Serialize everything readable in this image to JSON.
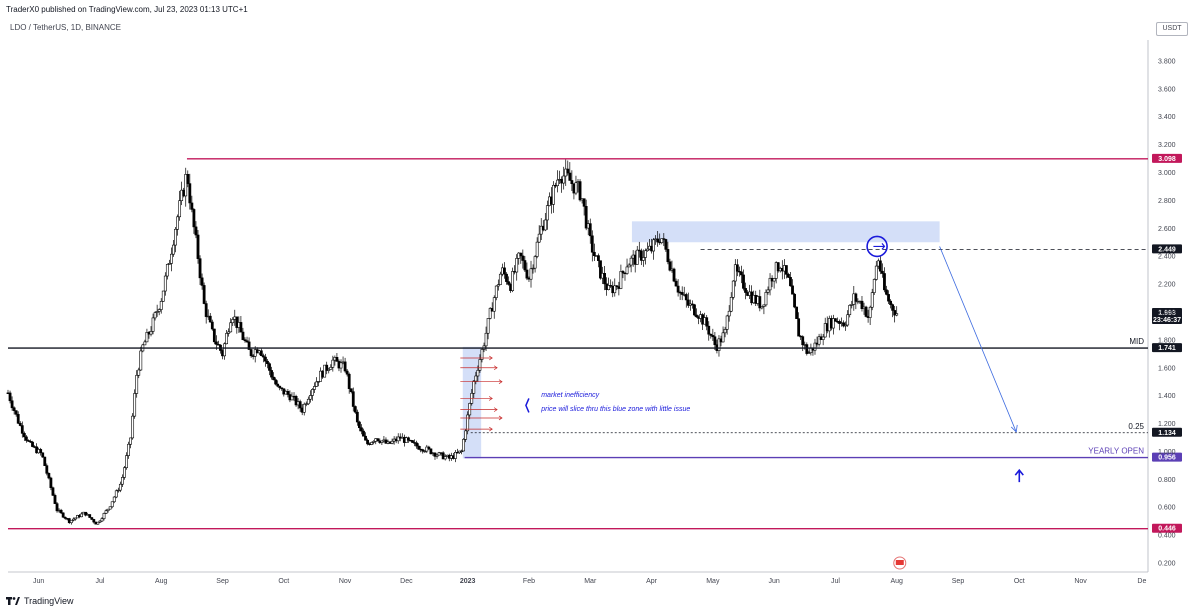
{
  "header": {
    "published": "TraderX0 published on TradingView.com, Jul 23, 2023 01:13 UTC+1",
    "symbol": "LDO / TetherUS, 1D, BINANCE",
    "currency": "USDT"
  },
  "footer": {
    "brand": "TradingView"
  },
  "chart_data": {
    "type": "candlestick",
    "title": "LDO / TetherUS, 1D, BINANCE",
    "y_ticks": [
      "0.200",
      "0.400",
      "0.600",
      "0.800",
      "1.000",
      "1.200",
      "1.400",
      "1.600",
      "1.800",
      "2.000",
      "2.200",
      "2.400",
      "2.600",
      "2.800",
      "3.000",
      "3.200",
      "3.400",
      "3.600",
      "3.800"
    ],
    "ylim": [
      0.15,
      3.95
    ],
    "x_labels": [
      {
        "label": "Jun",
        "x": 0.5
      },
      {
        "label": "Jul",
        "x": 1.5
      },
      {
        "label": "Aug",
        "x": 2.5
      },
      {
        "label": "Sep",
        "x": 3.5
      },
      {
        "label": "Oct",
        "x": 4.5
      },
      {
        "label": "Nov",
        "x": 5.5
      },
      {
        "label": "Dec",
        "x": 6.5
      },
      {
        "label": "2023",
        "x": 7.5,
        "bold": true
      },
      {
        "label": "Feb",
        "x": 8.5
      },
      {
        "label": "Mar",
        "x": 9.5
      },
      {
        "label": "Apr",
        "x": 10.5
      },
      {
        "label": "May",
        "x": 11.5
      },
      {
        "label": "Jun",
        "x": 12.5
      },
      {
        "label": "Jul",
        "x": 13.5
      },
      {
        "label": "Aug",
        "x": 14.5
      },
      {
        "label": "Sep",
        "x": 15.5
      },
      {
        "label": "Oct",
        "x": 16.5
      },
      {
        "label": "Nov",
        "x": 17.5
      },
      {
        "label": "De",
        "x": 18.5
      }
    ],
    "xlim": [
      0,
      18.6
    ],
    "price_path": [
      [
        0,
        1.42
      ],
      [
        0.18,
        1.2
      ],
      [
        0.35,
        1.05
      ],
      [
        0.55,
        0.98
      ],
      [
        0.8,
        0.58
      ],
      [
        1.0,
        0.5
      ],
      [
        1.25,
        0.56
      ],
      [
        1.45,
        0.48
      ],
      [
        1.65,
        0.6
      ],
      [
        1.85,
        0.78
      ],
      [
        2.0,
        1.1
      ],
      [
        2.1,
        1.55
      ],
      [
        2.2,
        1.75
      ],
      [
        2.35,
        1.9
      ],
      [
        2.5,
        2.1
      ],
      [
        2.6,
        2.3
      ],
      [
        2.75,
        2.65
      ],
      [
        2.85,
        2.85
      ],
      [
        2.92,
        3.0
      ],
      [
        3.0,
        2.7
      ],
      [
        3.1,
        2.4
      ],
      [
        3.2,
        2.05
      ],
      [
        3.35,
        1.82
      ],
      [
        3.5,
        1.7
      ],
      [
        3.65,
        2.0
      ],
      [
        3.8,
        1.85
      ],
      [
        3.95,
        1.7
      ],
      [
        4.1,
        1.75
      ],
      [
        4.25,
        1.6
      ],
      [
        4.4,
        1.45
      ],
      [
        4.6,
        1.4
      ],
      [
        4.8,
        1.3
      ],
      [
        4.95,
        1.45
      ],
      [
        5.1,
        1.55
      ],
      [
        5.3,
        1.65
      ],
      [
        5.5,
        1.6
      ],
      [
        5.7,
        1.2
      ],
      [
        5.85,
        1.05
      ],
      [
        6.0,
        1.1
      ],
      [
        6.2,
        1.05
      ],
      [
        6.4,
        1.1
      ],
      [
        6.6,
        1.05
      ],
      [
        6.8,
        1.02
      ],
      [
        7.0,
        0.98
      ],
      [
        7.2,
        0.95
      ],
      [
        7.4,
        1.0
      ],
      [
        7.5,
        1.25
      ],
      [
        7.6,
        1.5
      ],
      [
        7.75,
        1.75
      ],
      [
        7.9,
        2.05
      ],
      [
        8.05,
        2.3
      ],
      [
        8.2,
        2.2
      ],
      [
        8.35,
        2.4
      ],
      [
        8.5,
        2.25
      ],
      [
        8.7,
        2.6
      ],
      [
        8.85,
        2.8
      ],
      [
        9.0,
        3.0
      ],
      [
        9.15,
        2.95
      ],
      [
        9.35,
        2.85
      ],
      [
        9.5,
        2.5
      ],
      [
        9.65,
        2.3
      ],
      [
        9.8,
        2.15
      ],
      [
        9.95,
        2.2
      ],
      [
        10.1,
        2.35
      ],
      [
        10.3,
        2.4
      ],
      [
        10.5,
        2.45
      ],
      [
        10.65,
        2.55
      ],
      [
        10.8,
        2.35
      ],
      [
        10.95,
        2.15
      ],
      [
        11.1,
        2.05
      ],
      [
        11.25,
        2.0
      ],
      [
        11.4,
        1.9
      ],
      [
        11.55,
        1.75
      ],
      [
        11.7,
        1.85
      ],
      [
        11.85,
        2.3
      ],
      [
        12.0,
        2.2
      ],
      [
        12.15,
        2.1
      ],
      [
        12.3,
        2.05
      ],
      [
        12.45,
        2.25
      ],
      [
        12.6,
        2.35
      ],
      [
        12.75,
        2.2
      ],
      [
        12.9,
        1.85
      ],
      [
        13.05,
        1.7
      ],
      [
        13.2,
        1.78
      ],
      [
        13.35,
        1.9
      ],
      [
        13.5,
        1.95
      ],
      [
        13.65,
        1.92
      ],
      [
        13.8,
        2.1
      ],
      [
        13.95,
        2.05
      ],
      [
        14.05,
        1.95
      ],
      [
        14.15,
        2.3
      ],
      [
        14.2,
        2.38
      ],
      [
        14.3,
        2.15
      ],
      [
        14.4,
        2.05
      ],
      [
        14.5,
        1.993
      ]
    ],
    "levels": [
      {
        "price": 3.098,
        "badge": "3.098",
        "color": "#c2185b",
        "x_start": 2.92
      },
      {
        "price": 2.449,
        "badge": "2.449",
        "color": "#131722",
        "dashed": true,
        "x_start": 11.3
      },
      {
        "price": 1.993,
        "badge": "1.993",
        "sub": "23:46:37",
        "color": "#131722",
        "last": true
      },
      {
        "price": 1.741,
        "badge": "1.741",
        "color": "#131722",
        "label": "MID"
      },
      {
        "price": 1.134,
        "badge": "1.134",
        "color": "#131722",
        "dotted": true,
        "label": "0.25",
        "x_start": 7.55
      },
      {
        "price": 0.956,
        "badge": "0.956",
        "color": "#5b3fb5",
        "label": "YEARLY OPEN",
        "x_start": 7.45
      },
      {
        "price": 0.446,
        "badge": "0.446",
        "color": "#c2185b"
      }
    ],
    "zones": [
      {
        "x0": 10.18,
        "x1": 15.2,
        "y0": 2.5,
        "y1": 2.65,
        "color": "#c5d4f5"
      },
      {
        "x0": 7.42,
        "x1": 7.72,
        "y0": 0.95,
        "y1": 1.75,
        "color": "#c5d4f5"
      }
    ],
    "annotations": [
      {
        "text": "market inefficiency",
        "x": 8.7,
        "y": 1.39
      },
      {
        "text": "price will slice thru this blue zone with little issue",
        "x": 8.7,
        "y": 1.29
      }
    ],
    "forecast_arrow": {
      "from": [
        15.2,
        2.47
      ],
      "to": [
        16.45,
        1.14
      ]
    }
  }
}
